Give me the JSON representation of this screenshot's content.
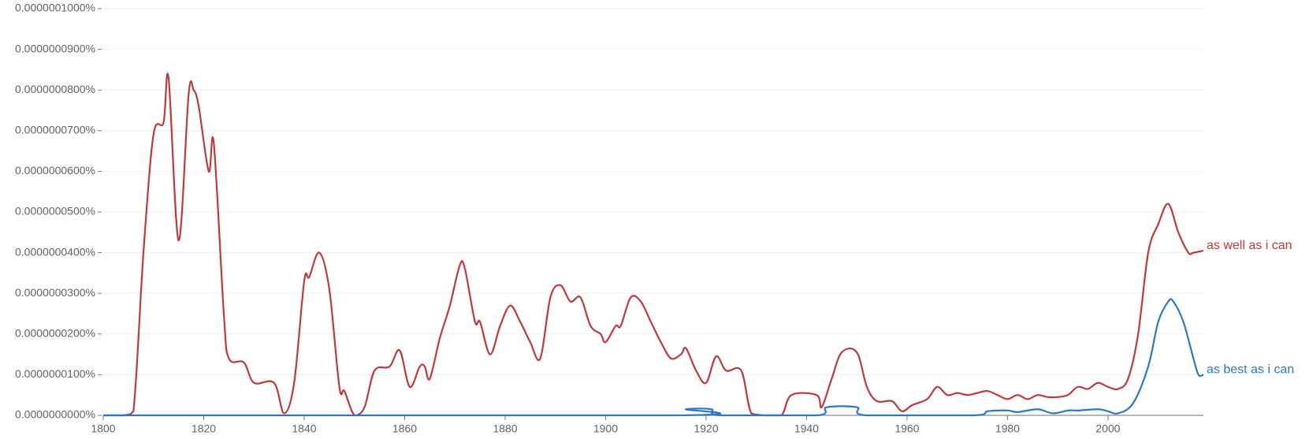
{
  "chart_data": {
    "type": "line",
    "xlim": [
      1800,
      2019
    ],
    "xticks": [
      1800,
      1820,
      1840,
      1860,
      1880,
      1900,
      1920,
      1940,
      1960,
      1980,
      2000
    ],
    "ylim": [
      0,
      1e-07
    ],
    "yticks": [
      {
        "value": 0,
        "label": "0.0000000000%"
      },
      {
        "value": 1e-08,
        "label": "0.0000000100%"
      },
      {
        "value": 2e-08,
        "label": "0.0000000200%"
      },
      {
        "value": 3e-08,
        "label": "0.0000000300%"
      },
      {
        "value": 4e-08,
        "label": "0.0000000400%"
      },
      {
        "value": 5e-08,
        "label": "0.0000000500%"
      },
      {
        "value": 6e-08,
        "label": "0.0000000600%"
      },
      {
        "value": 7e-08,
        "label": "0.0000000700%"
      },
      {
        "value": 8e-08,
        "label": "0.0000000800%"
      },
      {
        "value": 9e-08,
        "label": "0.0000000900%"
      },
      {
        "value": 1e-07,
        "label": "0.0000001000%"
      }
    ],
    "grid": true,
    "series": [
      {
        "name": "as well as i can",
        "color": "#c0393b",
        "x": [
          1800,
          1804,
          1806,
          1808,
          1810,
          1812,
          1813,
          1815,
          1817,
          1818,
          1819,
          1821,
          1822,
          1824,
          1825,
          1828,
          1830,
          1834,
          1836,
          1838,
          1840,
          1841,
          1843,
          1845,
          1847,
          1848,
          1850,
          1852,
          1854,
          1857,
          1859,
          1861,
          1863,
          1864,
          1865,
          1867,
          1869,
          1871,
          1872,
          1874,
          1875,
          1877,
          1879,
          1881,
          1883,
          1885,
          1887,
          1889,
          1891,
          1893,
          1895,
          1897,
          1899,
          1900,
          1902,
          1903,
          1905,
          1907,
          1909,
          1911,
          1913,
          1915,
          1916,
          1918,
          1920,
          1922,
          1924,
          1927,
          1929,
          1932,
          1935,
          1937,
          1942,
          1943,
          1945,
          1947,
          1950,
          1952,
          1954,
          1957,
          1959,
          1961,
          1964,
          1966,
          1968,
          1970,
          1972,
          1974,
          1976,
          1978,
          1980,
          1982,
          1984,
          1986,
          1988,
          1990,
          1992,
          1994,
          1996,
          1998,
          2000,
          2002,
          2004,
          2006,
          2008,
          2010,
          2012,
          2014,
          2016,
          2017,
          2019
        ],
        "values": [
          0.0,
          0.0,
          1e-09,
          4e-08,
          6.9e-08,
          7.2e-08,
          8.3e-08,
          4.3e-08,
          7.9e-08,
          8e-08,
          7.6e-08,
          6e-08,
          6.7e-08,
          2.5e-08,
          1.4e-08,
          1.3e-08,
          8e-09,
          8e-09,
          5e-10,
          8e-09,
          3.3e-08,
          3.4e-08,
          4e-08,
          3.1e-08,
          7e-09,
          6e-09,
          0.0,
          2e-09,
          1.1e-08,
          1.2e-08,
          1.6e-08,
          7e-09,
          1.2e-08,
          1.2e-08,
          9e-09,
          1.9e-08,
          2.7e-08,
          3.7e-08,
          3.6e-08,
          2.3e-08,
          2.3e-08,
          1.5e-08,
          2.2e-08,
          2.7e-08,
          2.3e-08,
          1.8e-08,
          1.4e-08,
          2.9e-08,
          3.2e-08,
          2.8e-08,
          2.9e-08,
          2.2e-08,
          2e-08,
          1.8e-08,
          2.2e-08,
          2.2e-08,
          2.9e-08,
          2.8e-08,
          2.3e-08,
          1.8e-08,
          1.4e-08,
          1.5e-08,
          1.65e-08,
          1.1e-08,
          8e-09,
          1.45e-08,
          1.1e-08,
          1.1e-08,
          5e-10,
          0.0,
          0.0,
          5e-09,
          5e-09,
          2e-09,
          9e-09,
          1.55e-08,
          1.55e-08,
          7e-09,
          3.5e-09,
          3.5e-09,
          1e-09,
          2.5e-09,
          4e-09,
          7e-09,
          5e-09,
          5.5e-09,
          5e-09,
          5.5e-09,
          6e-09,
          5e-09,
          4e-09,
          5e-09,
          4e-09,
          5e-09,
          4.5e-09,
          4.5e-09,
          5e-09,
          7e-09,
          6.5e-09,
          8e-09,
          7e-09,
          6.5e-09,
          9e-09,
          2e-08,
          4e-08,
          4.7e-08,
          5.2e-08,
          4.5e-08,
          4e-08,
          4e-08,
          4.05e-08
        ]
      },
      {
        "name": "as best as i can",
        "color": "#2b78c5",
        "x": [
          1800,
          1914,
          1916,
          1921,
          1923,
          1942,
          1944,
          1950,
          1952,
          1973,
          1976,
          1980,
          1982,
          1986,
          1989,
          1992,
          1994,
          1998,
          2000,
          2002,
          2005,
          2008,
          2010,
          2012,
          2013,
          2015,
          2017,
          2018,
          2019
        ],
        "values": [
          0.0,
          0.0,
          1.5e-09,
          1.5e-09,
          0.0,
          0.0,
          2e-09,
          2e-09,
          0.0,
          0.0,
          1e-09,
          1.2e-09,
          8e-10,
          1.5e-09,
          5e-10,
          1.2e-09,
          1.2e-09,
          1.5e-09,
          1e-09,
          5e-10,
          3e-09,
          1.2e-08,
          2.3e-08,
          2.8e-08,
          2.8e-08,
          2.3e-08,
          1.4e-08,
          1e-08,
          1e-08
        ]
      }
    ]
  }
}
